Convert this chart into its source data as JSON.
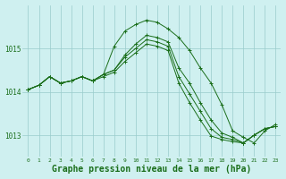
{
  "background_color": "#cff0f0",
  "grid_color": "#99cccc",
  "line_color": "#1a6e1a",
  "xlabel": "Graphe pression niveau de la mer (hPa)",
  "xlabel_fontsize": 7.0,
  "ylim": [
    1012.5,
    1016.0
  ],
  "yticks": [
    1013,
    1014,
    1015
  ],
  "xticks": [
    0,
    1,
    2,
    3,
    4,
    5,
    6,
    7,
    8,
    9,
    10,
    11,
    12,
    13,
    14,
    15,
    16,
    17,
    18,
    19,
    20,
    21,
    22,
    23
  ],
  "series": [
    [
      1014.05,
      1014.15,
      1014.35,
      1014.2,
      1014.25,
      1014.35,
      1014.25,
      1014.4,
      1015.05,
      1015.4,
      1015.55,
      1015.65,
      1015.6,
      1015.45,
      1015.25,
      1014.95,
      1014.55,
      1014.2,
      1013.7,
      1013.1,
      1012.95,
      1012.82,
      1013.1,
      1013.25
    ],
    [
      1014.05,
      1014.15,
      1014.35,
      1014.2,
      1014.25,
      1014.35,
      1014.25,
      1014.4,
      1014.5,
      1014.85,
      1015.1,
      1015.3,
      1015.25,
      1015.15,
      1014.55,
      1014.2,
      1013.75,
      1013.35,
      1013.05,
      1012.95,
      1012.82,
      1013.0,
      1013.15,
      1013.2
    ],
    [
      1014.05,
      1014.15,
      1014.35,
      1014.2,
      1014.25,
      1014.35,
      1014.25,
      1014.4,
      1014.5,
      1014.8,
      1015.0,
      1015.2,
      1015.15,
      1015.05,
      1014.35,
      1013.95,
      1013.55,
      1013.15,
      1012.95,
      1012.9,
      1012.82,
      1013.0,
      1013.15,
      1013.2
    ],
    [
      1014.05,
      1014.15,
      1014.35,
      1014.2,
      1014.25,
      1014.35,
      1014.25,
      1014.35,
      1014.45,
      1014.7,
      1014.9,
      1015.1,
      1015.05,
      1014.95,
      1014.2,
      1013.75,
      1013.35,
      1012.98,
      1012.9,
      1012.85,
      1012.82,
      1013.0,
      1013.15,
      1013.2
    ]
  ]
}
